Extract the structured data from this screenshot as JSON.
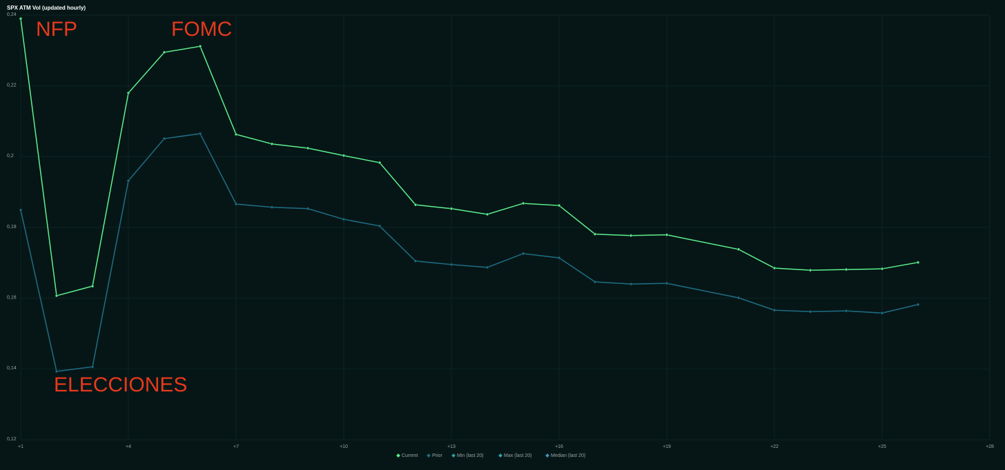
{
  "chart_data": {
    "type": "line",
    "title": "SPX ATM Vol (updated hourly)",
    "annotations": [
      "NFP",
      "FOMC",
      "ELECCIONES"
    ],
    "annotation_color": "#e8391c",
    "x": [
      1,
      2,
      3,
      4,
      5,
      6,
      7,
      8,
      9,
      10,
      11,
      12,
      13,
      14,
      15,
      16,
      17,
      18,
      19,
      21,
      22,
      23,
      24,
      25,
      26
    ],
    "series": [
      {
        "name": "Current",
        "color": "#5ef08f",
        "values": [
          0.239,
          0.1607,
          0.1634,
          0.218,
          0.2295,
          0.2312,
          0.2063,
          0.2036,
          0.2024,
          0.2003,
          0.1983,
          0.1864,
          0.1853,
          0.1837,
          0.1868,
          0.1862,
          0.1781,
          0.1777,
          0.1779,
          0.1738,
          0.1685,
          0.1679,
          0.1681,
          0.1683,
          0.1701
        ]
      },
      {
        "name": "Prior",
        "color": "#1f6e86",
        "values": [
          0.1849,
          0.1393,
          0.1406,
          0.1932,
          0.2051,
          0.2065,
          0.1866,
          0.1857,
          0.1853,
          0.1823,
          0.1804,
          0.1705,
          0.1695,
          0.1687,
          0.1726,
          0.1714,
          0.1646,
          0.164,
          0.1642,
          0.1601,
          0.1566,
          0.1562,
          0.1564,
          0.1558,
          0.1582
        ]
      },
      {
        "name": "Min (last 20)",
        "color": "#2aa0a0",
        "values": [
          null,
          null,
          null,
          null,
          null,
          null,
          null,
          null,
          null,
          null,
          null,
          null,
          null,
          null,
          null,
          null,
          null,
          null,
          null,
          null,
          null,
          null,
          null,
          null,
          null
        ]
      },
      {
        "name": "Max (last 20)",
        "color": "#2aa8b8",
        "values": [
          null,
          null,
          null,
          null,
          null,
          null,
          null,
          null,
          null,
          null,
          null,
          null,
          null,
          null,
          null,
          null,
          null,
          null,
          null,
          null,
          null,
          null,
          null,
          null,
          null
        ]
      },
      {
        "name": "Median (last 20)",
        "color": "#3a9ac0",
        "values": [
          null,
          null,
          null,
          null,
          null,
          null,
          null,
          null,
          null,
          null,
          null,
          null,
          null,
          null,
          null,
          null,
          null,
          null,
          null,
          null,
          null,
          null,
          null,
          null,
          null
        ]
      }
    ],
    "xlim": [
      1,
      28
    ],
    "xticks": [
      {
        "value": 1,
        "label": "+1"
      },
      {
        "value": 4,
        "label": "+4"
      },
      {
        "value": 7,
        "label": "+7"
      },
      {
        "value": 10,
        "label": "+10"
      },
      {
        "value": 13,
        "label": "+13"
      },
      {
        "value": 16,
        "label": "+16"
      },
      {
        "value": 19,
        "label": "+19"
      },
      {
        "value": 22,
        "label": "+22"
      },
      {
        "value": 25,
        "label": "+25"
      },
      {
        "value": 28,
        "label": "+28"
      }
    ],
    "ylim": [
      0.12,
      0.24
    ],
    "yticks": [
      {
        "value": 0.12,
        "label": "0,12"
      },
      {
        "value": 0.14,
        "label": "0,14"
      },
      {
        "value": 0.16,
        "label": "0,16"
      },
      {
        "value": 0.18,
        "label": "0,18"
      },
      {
        "value": 0.2,
        "label": "0,2"
      },
      {
        "value": 0.22,
        "label": "0,22"
      },
      {
        "value": 0.24,
        "label": "0,24"
      }
    ],
    "grid": true,
    "legend": "bottom"
  }
}
